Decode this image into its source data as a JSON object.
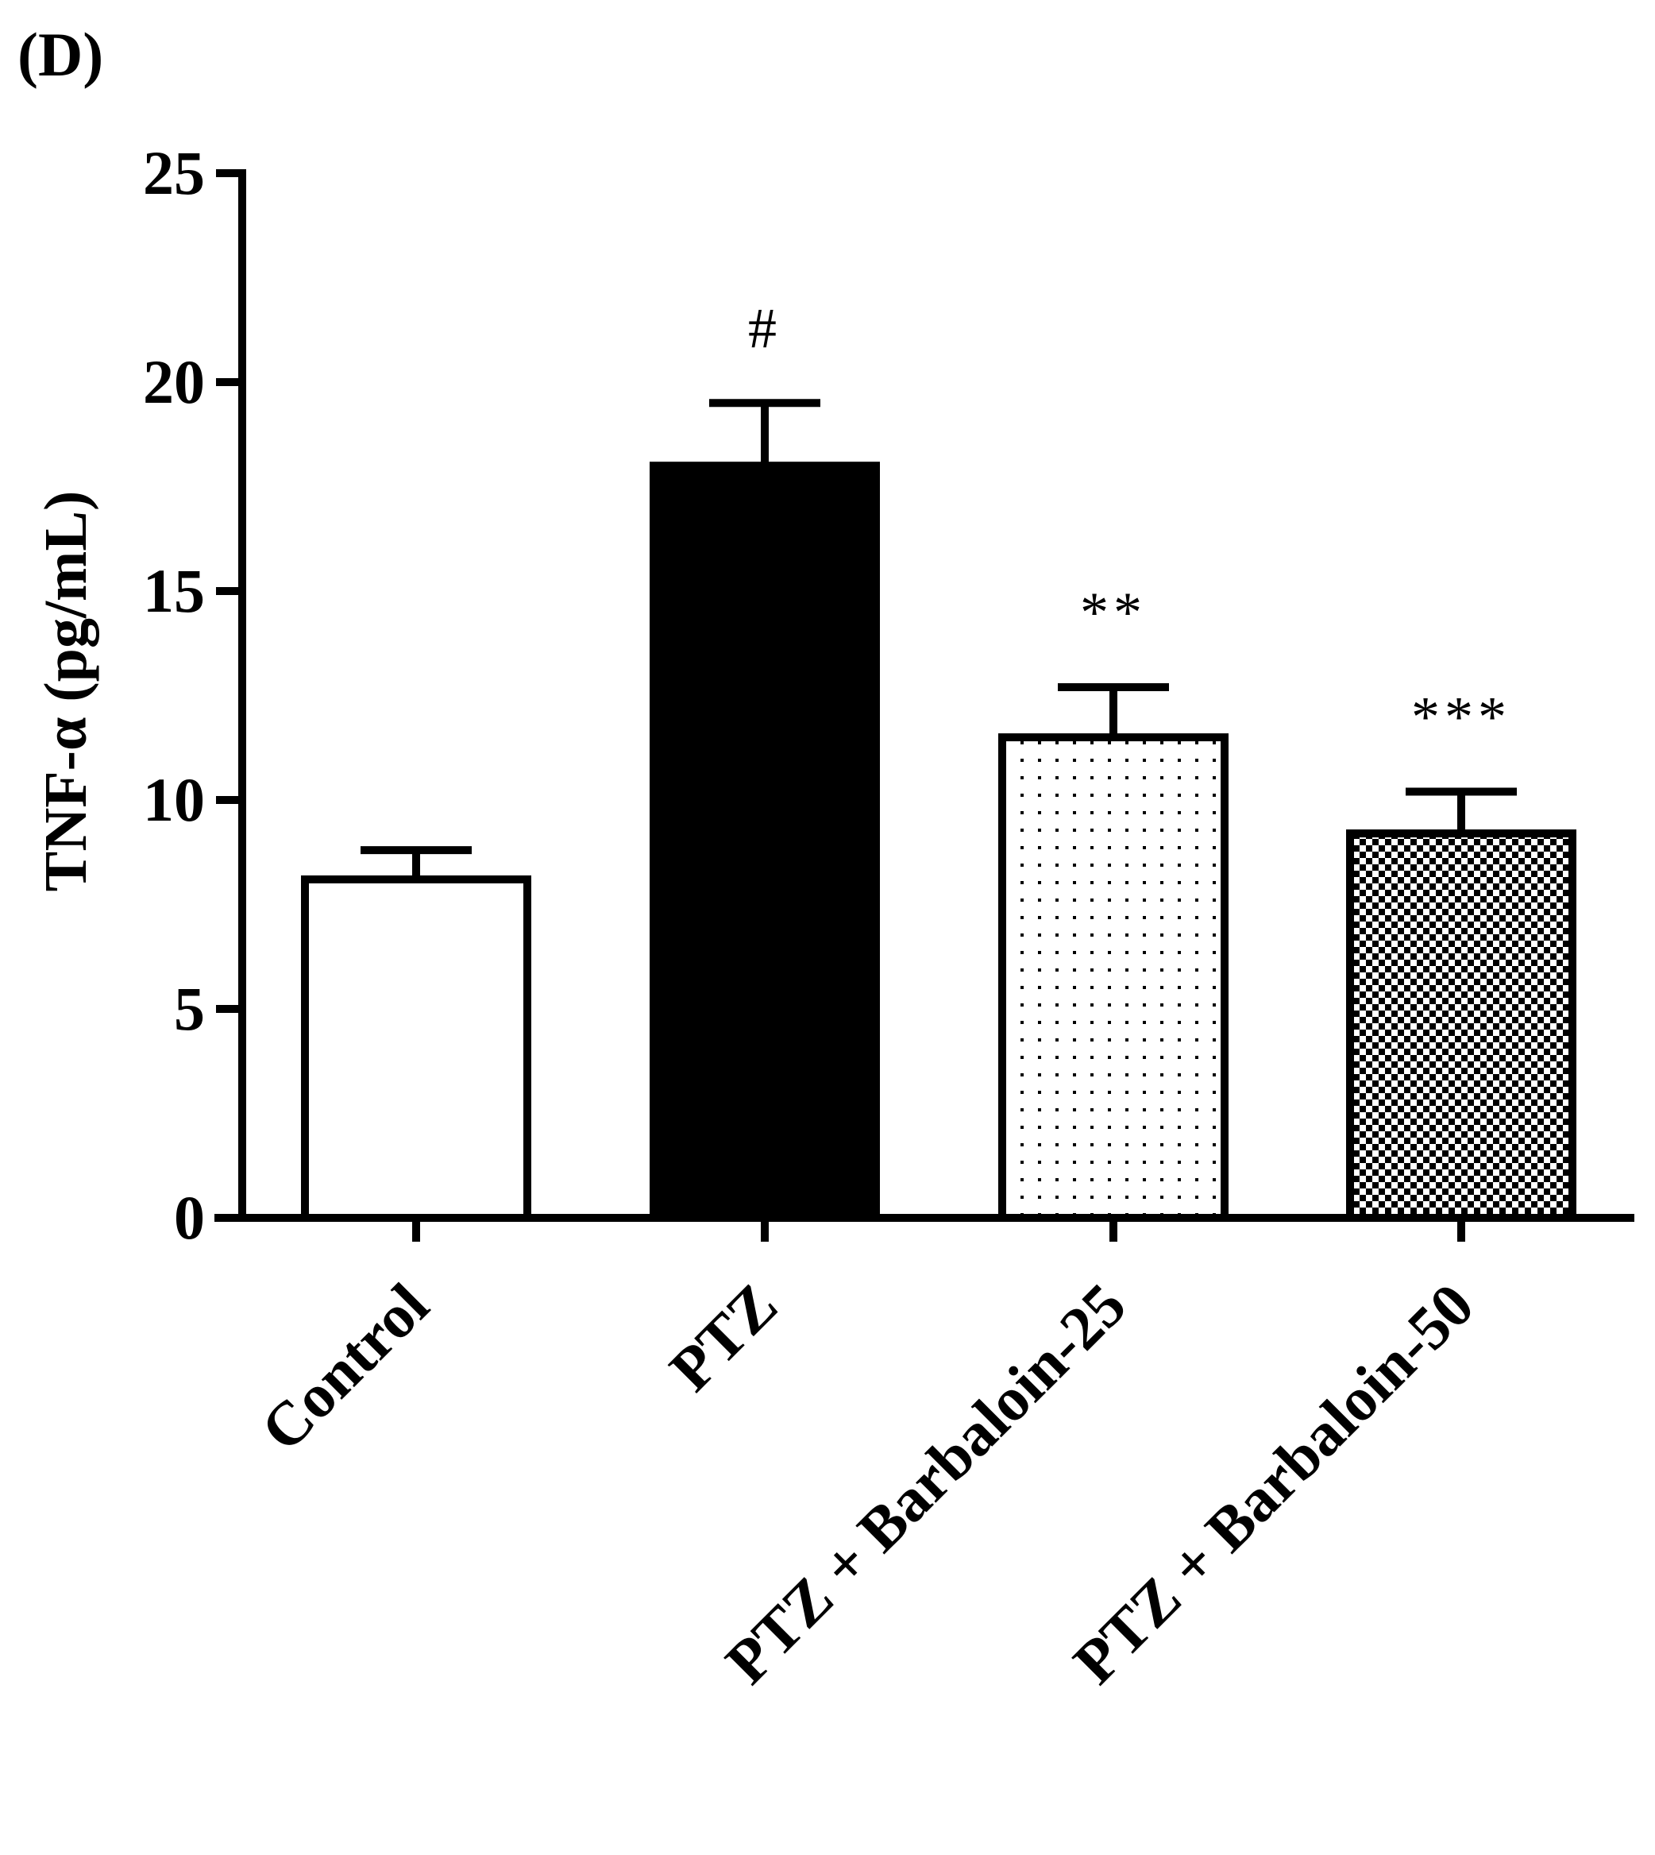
{
  "panel_label": "(D)",
  "chart_data": {
    "type": "bar",
    "title": "",
    "xlabel": "",
    "ylabel": "TNF-α (pg/mL)",
    "ylim": [
      0,
      25
    ],
    "yticks": [
      "0",
      "5",
      "10",
      "15",
      "20",
      "25"
    ],
    "categories": [
      "Control",
      "PTZ",
      "PTZ + Barbaloin-25",
      "PTZ + Barbaloin-50"
    ],
    "values": [
      8.1,
      18.0,
      11.5,
      9.2
    ],
    "errors": [
      0.7,
      1.5,
      1.2,
      1.0
    ],
    "annotations": [
      "",
      "#",
      "**",
      "***"
    ],
    "fills": [
      "white",
      "black",
      "dots",
      "checker"
    ],
    "grid": false,
    "legend": "none"
  }
}
